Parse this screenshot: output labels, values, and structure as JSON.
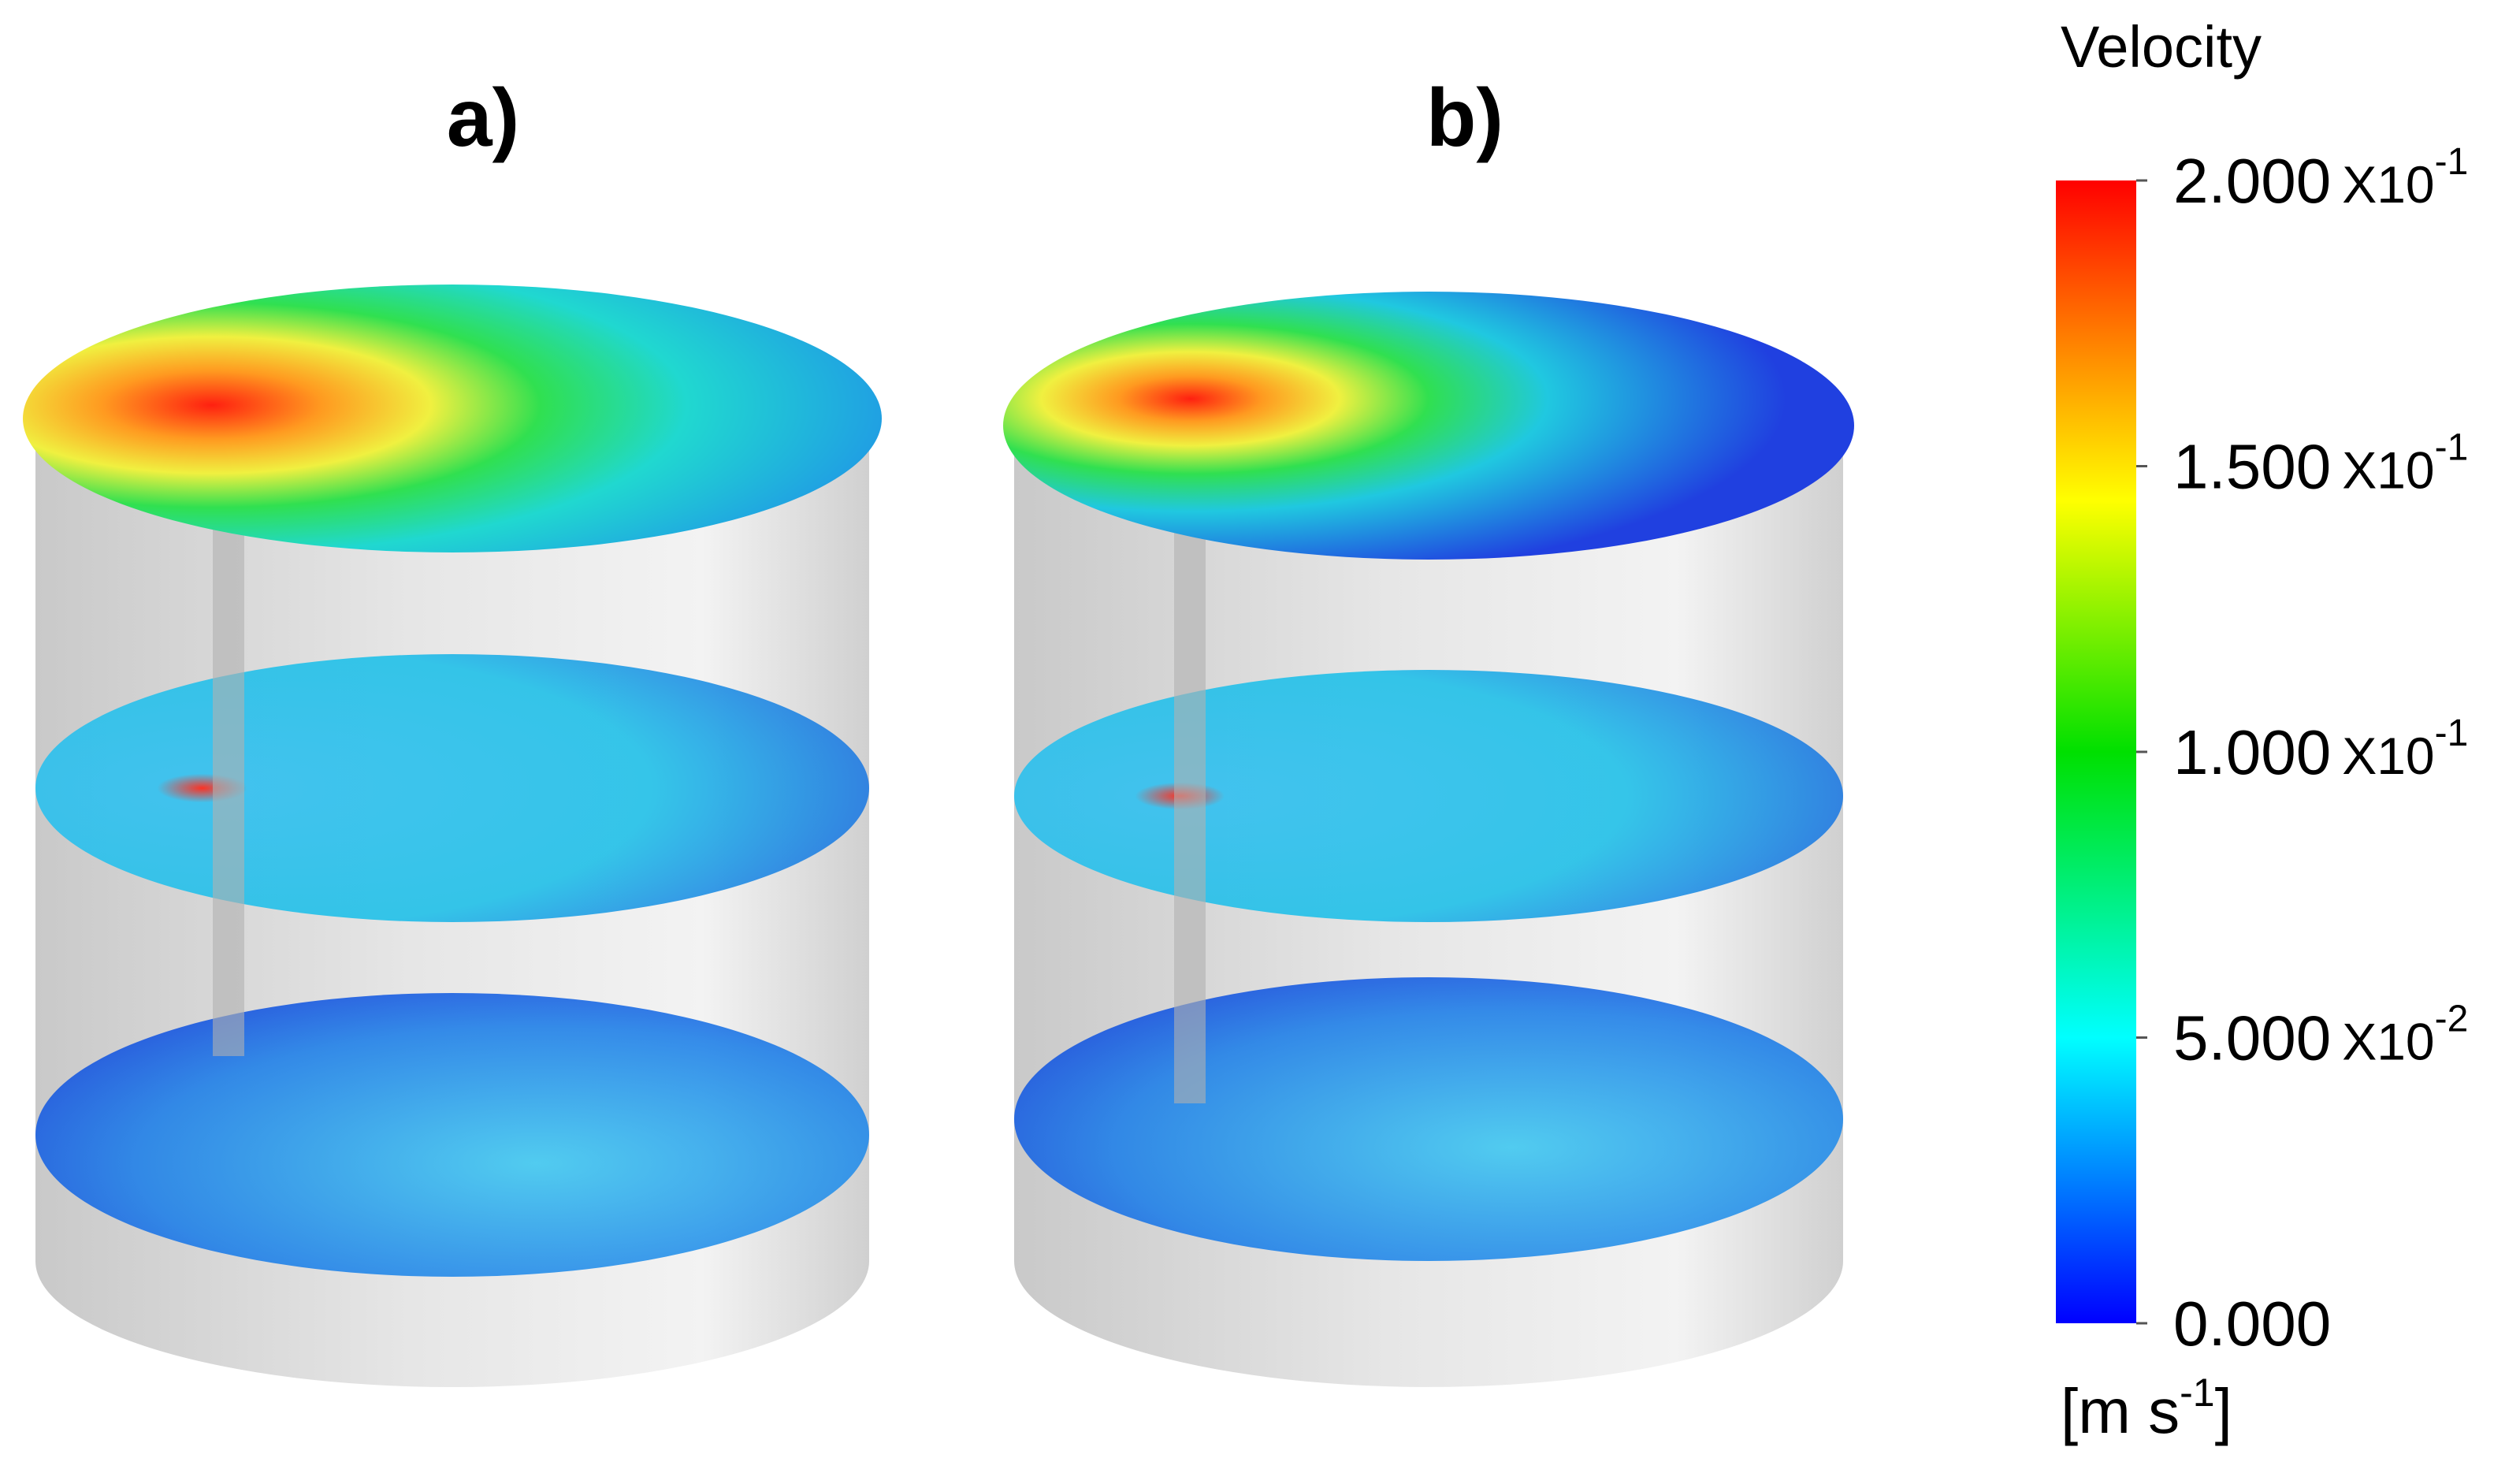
{
  "panels": [
    {
      "label": "a)"
    },
    {
      "label": "b)"
    }
  ],
  "colorbar": {
    "title": "Velocity",
    "range": [
      0,
      0.2
    ],
    "ticks": [
      {
        "value": 0.2,
        "mantissa": "2.000",
        "base": "X10",
        "exponent": "-1"
      },
      {
        "value": 0.15,
        "mantissa": "1.500",
        "base": "X10",
        "exponent": "-1"
      },
      {
        "value": 0.1,
        "mantissa": "1.000",
        "base": "X10",
        "exponent": "-1"
      },
      {
        "value": 0.05,
        "mantissa": "5.000",
        "base": "X10",
        "exponent": "-2"
      },
      {
        "value": 0,
        "mantissa": "0.000"
      }
    ],
    "unit": {
      "text": "[m s",
      "exponent": "-1",
      "close": "]"
    }
  }
}
